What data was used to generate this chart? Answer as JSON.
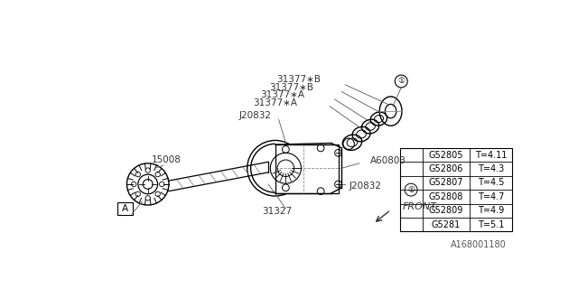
{
  "bg_color": "#ffffff",
  "watermark": "A168001180",
  "table": {
    "parts": [
      "G52805",
      "G52806",
      "G52807",
      "G52808",
      "G52809",
      "G5281"
    ],
    "values": [
      "T=4.11",
      "T=4.3",
      "T=4.5",
      "T=4.7",
      "T=4.9",
      "T=5.1"
    ]
  },
  "lc": "#000000",
  "gc": "#888888"
}
